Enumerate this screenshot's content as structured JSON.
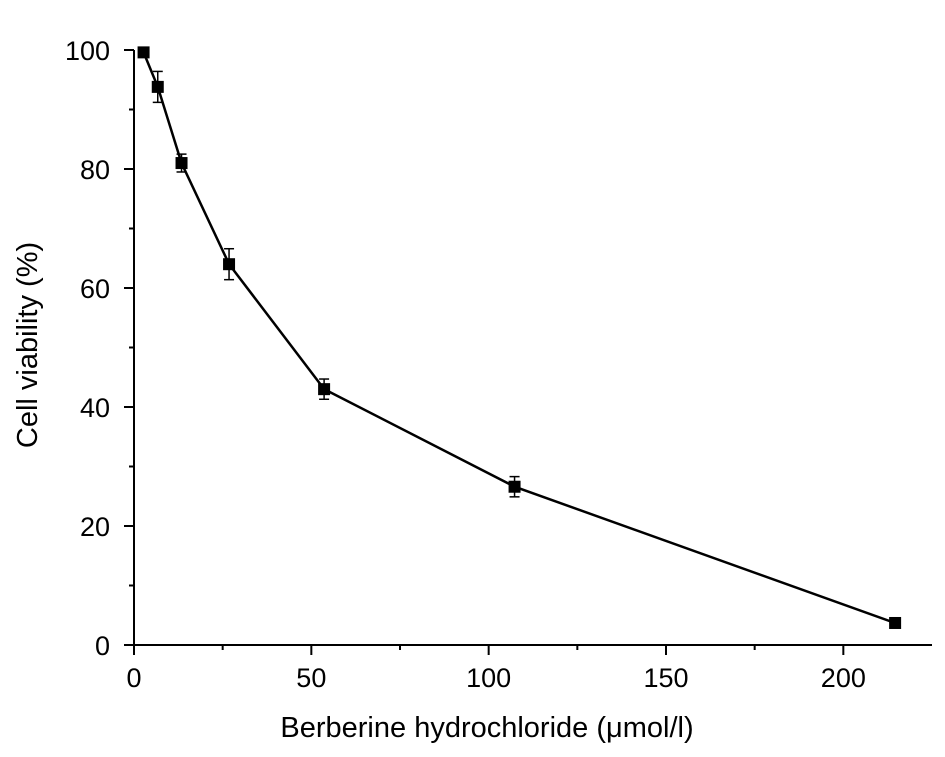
{
  "chart_data": {
    "type": "line",
    "title": "",
    "xlabel": "Berberine hydrochloride (μmol/l)",
    "ylabel": "Cell viability (%)",
    "xlim": [
      0,
      225
    ],
    "ylim": [
      0,
      100
    ],
    "xticks": [
      0,
      50,
      100,
      150,
      200
    ],
    "yticks": [
      0,
      20,
      40,
      60,
      80,
      100
    ],
    "x_tick_labels": [
      "0",
      "50",
      "100",
      "150",
      "200"
    ],
    "y_tick_labels": [
      "0",
      "20",
      "40",
      "60",
      "80",
      "100"
    ],
    "grid": false,
    "legend": "none",
    "marker": "filled-square",
    "color": "#000000",
    "series": [
      {
        "x": [
          2.7,
          6.7,
          13.4,
          26.8,
          53.6,
          107.3,
          214.6
        ],
        "y": [
          99.6,
          93.8,
          81.0,
          64.0,
          43.0,
          26.6,
          3.7
        ],
        "error": [
          0.4,
          2.6,
          1.5,
          2.6,
          1.7,
          1.7,
          0.5
        ]
      }
    ]
  }
}
